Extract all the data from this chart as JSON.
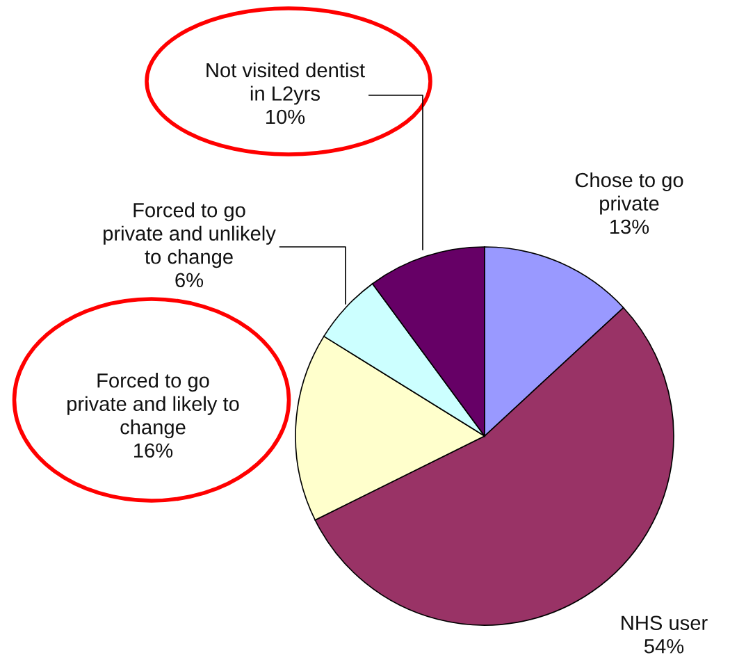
{
  "chart_data": {
    "type": "pie",
    "categories": [
      "Chose to go\nprivate",
      "NHS user",
      "Forced to go\nprivate and likely to\nchange",
      "Forced to go\nprivate and unlikely\nto change",
      "Not visited dentist\nin L2yrs"
    ],
    "values": [
      13,
      54,
      16,
      6,
      10
    ],
    "value_labels": [
      "13%",
      "54%",
      "16%",
      "6%",
      "10%"
    ],
    "colors": [
      "#9999ff",
      "#993366",
      "#ffffcc",
      "#ccffff",
      "#660066"
    ]
  }
}
